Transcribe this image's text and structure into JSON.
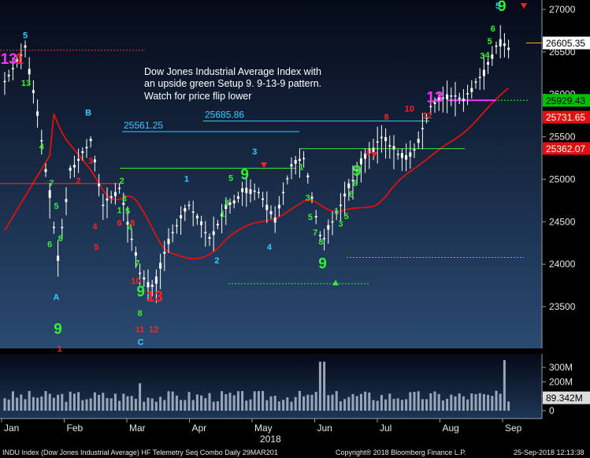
{
  "chart_data": {
    "type": "bar",
    "subtype": "candlestick-ohlc",
    "year_label": "2018",
    "price_axis": {
      "range": [
        23000,
        27100
      ],
      "ticks": [
        "23500",
        "24000",
        "24500",
        "25000",
        "25500",
        "26000",
        "26500",
        "27000"
      ],
      "grid": false
    },
    "volume_axis": {
      "range": [
        0,
        360
      ],
      "ticks": [
        "0",
        "100M",
        "200M",
        "300M"
      ]
    },
    "months": [
      "Jan",
      "Feb",
      "Mar",
      "Apr",
      "May",
      "Jun",
      "Jul",
      "Aug",
      "Sep"
    ],
    "annotation_lines": [
      "Dow Jones Industrial Average Index with",
      "an upside green Setup 9.  9-13-9 pattern.",
      "Watch for price flip lower"
    ],
    "levels": [
      {
        "label": "25561.25",
        "value": 25561.25,
        "color": "#33ccff"
      },
      {
        "label": "25685.86",
        "value": 25685.86,
        "color": "#33ccff"
      }
    ],
    "price_badges": [
      {
        "label": "26605.35",
        "value": 26605.35,
        "bg": "#ffffff",
        "fg": "#000000"
      },
      {
        "label": "25929.43",
        "value": 25929.43,
        "bg": "#00c000",
        "fg": "#000000"
      },
      {
        "label": "25731.65",
        "value": 25731.65,
        "bg": "#e01010",
        "fg": "#ffffff"
      },
      {
        "label": "25362.07",
        "value": 25362.07,
        "bg": "#e01010",
        "fg": "#ffffff"
      }
    ],
    "volume_badge": {
      "label": "89.342M",
      "value": 89.342
    },
    "seq_labels": [
      {
        "t": "5",
        "d": 2.5,
        "v": 26660,
        "c": "cyan"
      },
      {
        "t": "13",
        "d": 0.5,
        "v": 26360,
        "c": "magenta",
        "big": true
      },
      {
        "t": "1",
        "d": 1.8,
        "v": 26360,
        "c": "red",
        "big": true
      },
      {
        "t": "13",
        "d": 2.6,
        "v": 26100,
        "c": "green"
      },
      {
        "t": "4",
        "d": 4.5,
        "v": 25350,
        "c": "green"
      },
      {
        "t": "7",
        "d": 5.7,
        "v": 24920,
        "c": "green"
      },
      {
        "t": "5",
        "d": 6.3,
        "v": 24650,
        "c": "green"
      },
      {
        "t": "8",
        "d": 6.8,
        "v": 24270,
        "c": "green"
      },
      {
        "t": "6",
        "d": 5.5,
        "v": 24200,
        "c": "green"
      },
      {
        "t": "A",
        "d": 6.3,
        "v": 23580,
        "c": "cyan"
      },
      {
        "t": "9",
        "d": 6.5,
        "v": 23180,
        "c": "green",
        "big": true
      },
      {
        "t": "1",
        "d": 6.7,
        "v": 22970,
        "c": "red"
      },
      {
        "t": "2",
        "d": 9.0,
        "v": 24950,
        "c": "red"
      },
      {
        "t": "B",
        "d": 10.2,
        "v": 25750,
        "c": "cyan"
      },
      {
        "t": "3",
        "d": 10.5,
        "v": 25180,
        "c": "red"
      },
      {
        "t": "4",
        "d": 11.0,
        "v": 24410,
        "c": "red"
      },
      {
        "t": "5",
        "d": 11.2,
        "v": 24170,
        "c": "red"
      },
      {
        "t": "2",
        "d": 14.3,
        "v": 24950,
        "c": "green"
      },
      {
        "t": "1",
        "d": 14.0,
        "v": 24600,
        "c": "green"
      },
      {
        "t": "3",
        "d": 14.6,
        "v": 24740,
        "c": "green"
      },
      {
        "t": "6",
        "d": 14.0,
        "v": 24450,
        "c": "red"
      },
      {
        "t": "5",
        "d": 15.0,
        "v": 24590,
        "c": "green"
      },
      {
        "t": "4",
        "d": 15.3,
        "v": 24400,
        "c": "green"
      },
      {
        "t": "8",
        "d": 15.6,
        "v": 24450,
        "c": "red"
      },
      {
        "t": "7",
        "d": 16.2,
        "v": 23980,
        "c": "green"
      },
      {
        "t": "10",
        "d": 16.0,
        "v": 23770,
        "c": "red"
      },
      {
        "t": "9",
        "d": 16.6,
        "v": 23620,
        "c": "green",
        "big": true
      },
      {
        "t": "8",
        "d": 16.5,
        "v": 23390,
        "c": "green"
      },
      {
        "t": "11",
        "d": 16.5,
        "v": 23200,
        "c": "red"
      },
      {
        "t": "C",
        "d": 16.6,
        "v": 23050,
        "c": "cyan"
      },
      {
        "t": "13",
        "d": 18.3,
        "v": 23560,
        "c": "red",
        "big": true
      },
      {
        "t": "12",
        "d": 18.2,
        "v": 23200,
        "c": "red"
      },
      {
        "t": "1",
        "d": 22.2,
        "v": 24970,
        "c": "cyan"
      },
      {
        "t": "1",
        "d": 26.6,
        "v": 24560,
        "c": "green"
      },
      {
        "t": "2",
        "d": 25.9,
        "v": 24010,
        "c": "cyan"
      },
      {
        "t": "3",
        "d": 27.1,
        "v": 24690,
        "c": "green"
      },
      {
        "t": "5",
        "d": 27.6,
        "v": 24980,
        "c": "green"
      },
      {
        "t": "9",
        "d": 29.3,
        "v": 25000,
        "c": "green",
        "big": true
      },
      {
        "t": "3",
        "d": 30.5,
        "v": 25290,
        "c": "cyan"
      },
      {
        "t": "4",
        "d": 32.3,
        "v": 24170,
        "c": "cyan"
      },
      {
        "t": "1",
        "d": 36.2,
        "v": 25110,
        "c": "green"
      },
      {
        "t": "3",
        "d": 37.0,
        "v": 24750,
        "c": "green"
      },
      {
        "t": "5",
        "d": 37.3,
        "v": 24520,
        "c": "green"
      },
      {
        "t": "7",
        "d": 37.9,
        "v": 24340,
        "c": "green"
      },
      {
        "t": "8",
        "d": 38.6,
        "v": 24230,
        "c": "green"
      },
      {
        "t": "9",
        "d": 38.8,
        "v": 23950,
        "c": "green",
        "big": true
      },
      {
        "t": "1",
        "d": 40.5,
        "v": 24590,
        "c": "green"
      },
      {
        "t": "3",
        "d": 41.0,
        "v": 24440,
        "c": "green"
      },
      {
        "t": "5",
        "d": 41.7,
        "v": 24530,
        "c": "green"
      },
      {
        "t": "6",
        "d": 42.3,
        "v": 24790,
        "c": "green"
      },
      {
        "t": "8",
        "d": 42.8,
        "v": 24920,
        "c": "green"
      },
      {
        "t": "9",
        "d": 43.0,
        "v": 25040,
        "c": "green",
        "big": true
      },
      {
        "t": "4",
        "d": 44.3,
        "v": 25280,
        "c": "red"
      },
      {
        "t": "8",
        "d": 46.6,
        "v": 25700,
        "c": "red"
      },
      {
        "t": "10",
        "d": 49.4,
        "v": 25800,
        "c": "red"
      },
      {
        "t": "13",
        "d": 52.5,
        "v": 25910,
        "c": "magenta",
        "big": true
      },
      {
        "t": "12",
        "d": 51.6,
        "v": 25720,
        "c": "red"
      },
      {
        "t": "3",
        "d": 58.3,
        "v": 26420,
        "c": "green"
      },
      {
        "t": "4",
        "d": 58.9,
        "v": 26430,
        "c": "green"
      },
      {
        "t": "5",
        "d": 59.2,
        "v": 26590,
        "c": "green"
      },
      {
        "t": "6",
        "d": 59.6,
        "v": 26740,
        "c": "green"
      },
      {
        "t": "9",
        "d": 60.7,
        "v": 26980,
        "c": "green",
        "big": true
      },
      {
        "t": "5",
        "d": 60.2,
        "v": 27010,
        "c": "cyan"
      }
    ]
  },
  "footer": {
    "left": "INDU Index (Dow Jones Industrial Average) HF Telemetry Seq Combo  Daily 29MAR201",
    "center": "Copyright® 2018 Bloomberg Finance L.P.",
    "right": "25-Sep-2018 12:13:38"
  }
}
